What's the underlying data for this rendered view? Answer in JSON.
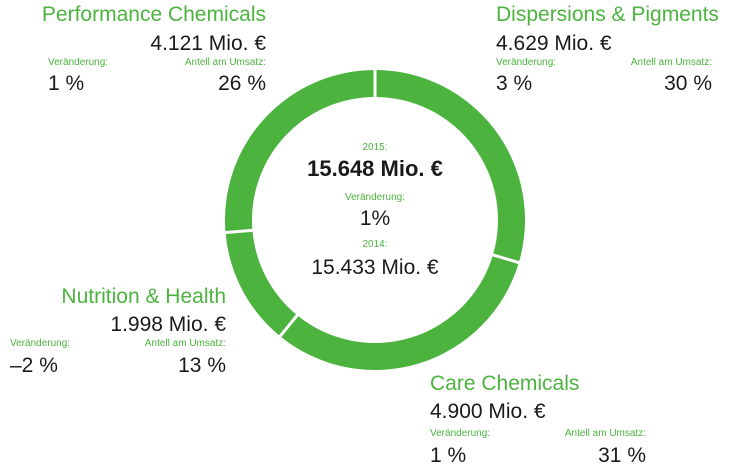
{
  "colors": {
    "accent": "#4cb33f",
    "text": "#1a1a1a",
    "separator": "#ffffff"
  },
  "labels": {
    "change": "Veränderung:",
    "share": "Antell am Umsatz:"
  },
  "center": {
    "year_current": "2015:",
    "value_current": "15.648 Mio. €",
    "change_label": "Veränderung:",
    "change_value": "1%",
    "year_previous": "2014:",
    "value_previous": "15.433 Mio. €"
  },
  "segments": {
    "performance": {
      "name": "Performance Chemicals",
      "value": "4.121 Mio. €",
      "change": "1 %",
      "share": "26 %"
    },
    "dispersions": {
      "name": "Dispersions & Pigments",
      "value": "4.629 Mio. €",
      "change": "3 %",
      "share": "30 %"
    },
    "nutrition": {
      "name": "Nutrition & Health",
      "value": "1.998 Mio. €",
      "change": "–2 %",
      "share": "13 %"
    },
    "care": {
      "name": "Care Chemicals",
      "value": "4.900 Mio. €",
      "change": "1 %",
      "share": "31 %"
    }
  },
  "chart_data": {
    "type": "pie",
    "categories": [
      "Dispersions & Pigments",
      "Care Chemicals",
      "Nutrition & Health",
      "Performance Chemicals"
    ],
    "values": [
      4629,
      4900,
      1998,
      4121
    ],
    "shares_percent": [
      30,
      31,
      13,
      26
    ],
    "total": 15648,
    "unit": "Mio. €"
  }
}
